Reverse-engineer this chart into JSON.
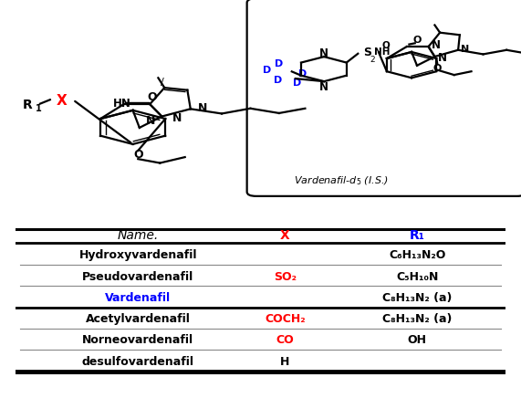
{
  "bg_color": "#ffffff",
  "table": {
    "header": [
      "Name.",
      "X",
      "R₁"
    ],
    "header_colors": [
      "black",
      "red",
      "blue"
    ],
    "rows": [
      {
        "name": "Hydroxyvardenafil",
        "name_color": "black",
        "x_text": "",
        "x_color": "red",
        "r1_text": "C₆H₁₃N₂O",
        "r1_color": "black"
      },
      {
        "name": "Pseudovardenafil",
        "name_color": "black",
        "x_text": "SO₂",
        "x_color": "red",
        "r1_text": "C₅H₁₀N",
        "r1_color": "black"
      },
      {
        "name": "Vardenafil",
        "name_color": "blue",
        "x_text": "",
        "x_color": "red",
        "r1_text": "C₈H₁₃N₂ (a)",
        "r1_color": "black"
      },
      {
        "name": "Acetylvardenafil",
        "name_color": "black",
        "x_text": "COCH₂",
        "x_color": "red",
        "r1_text": "C₈H₁₃N₂ (a)",
        "r1_color": "black"
      },
      {
        "name": "Norneovardenafil",
        "name_color": "black",
        "x_text": "CO",
        "x_color": "red",
        "r1_text": "OH",
        "r1_color": "black"
      },
      {
        "name": "desulfovardenafil",
        "name_color": "black",
        "x_text": "H",
        "x_color": "black",
        "r1_text": "",
        "r1_color": "black"
      }
    ],
    "thick_lines_after": [
      -1,
      2,
      5
    ],
    "thin_lines_after": [
      0,
      1,
      3,
      4
    ]
  }
}
